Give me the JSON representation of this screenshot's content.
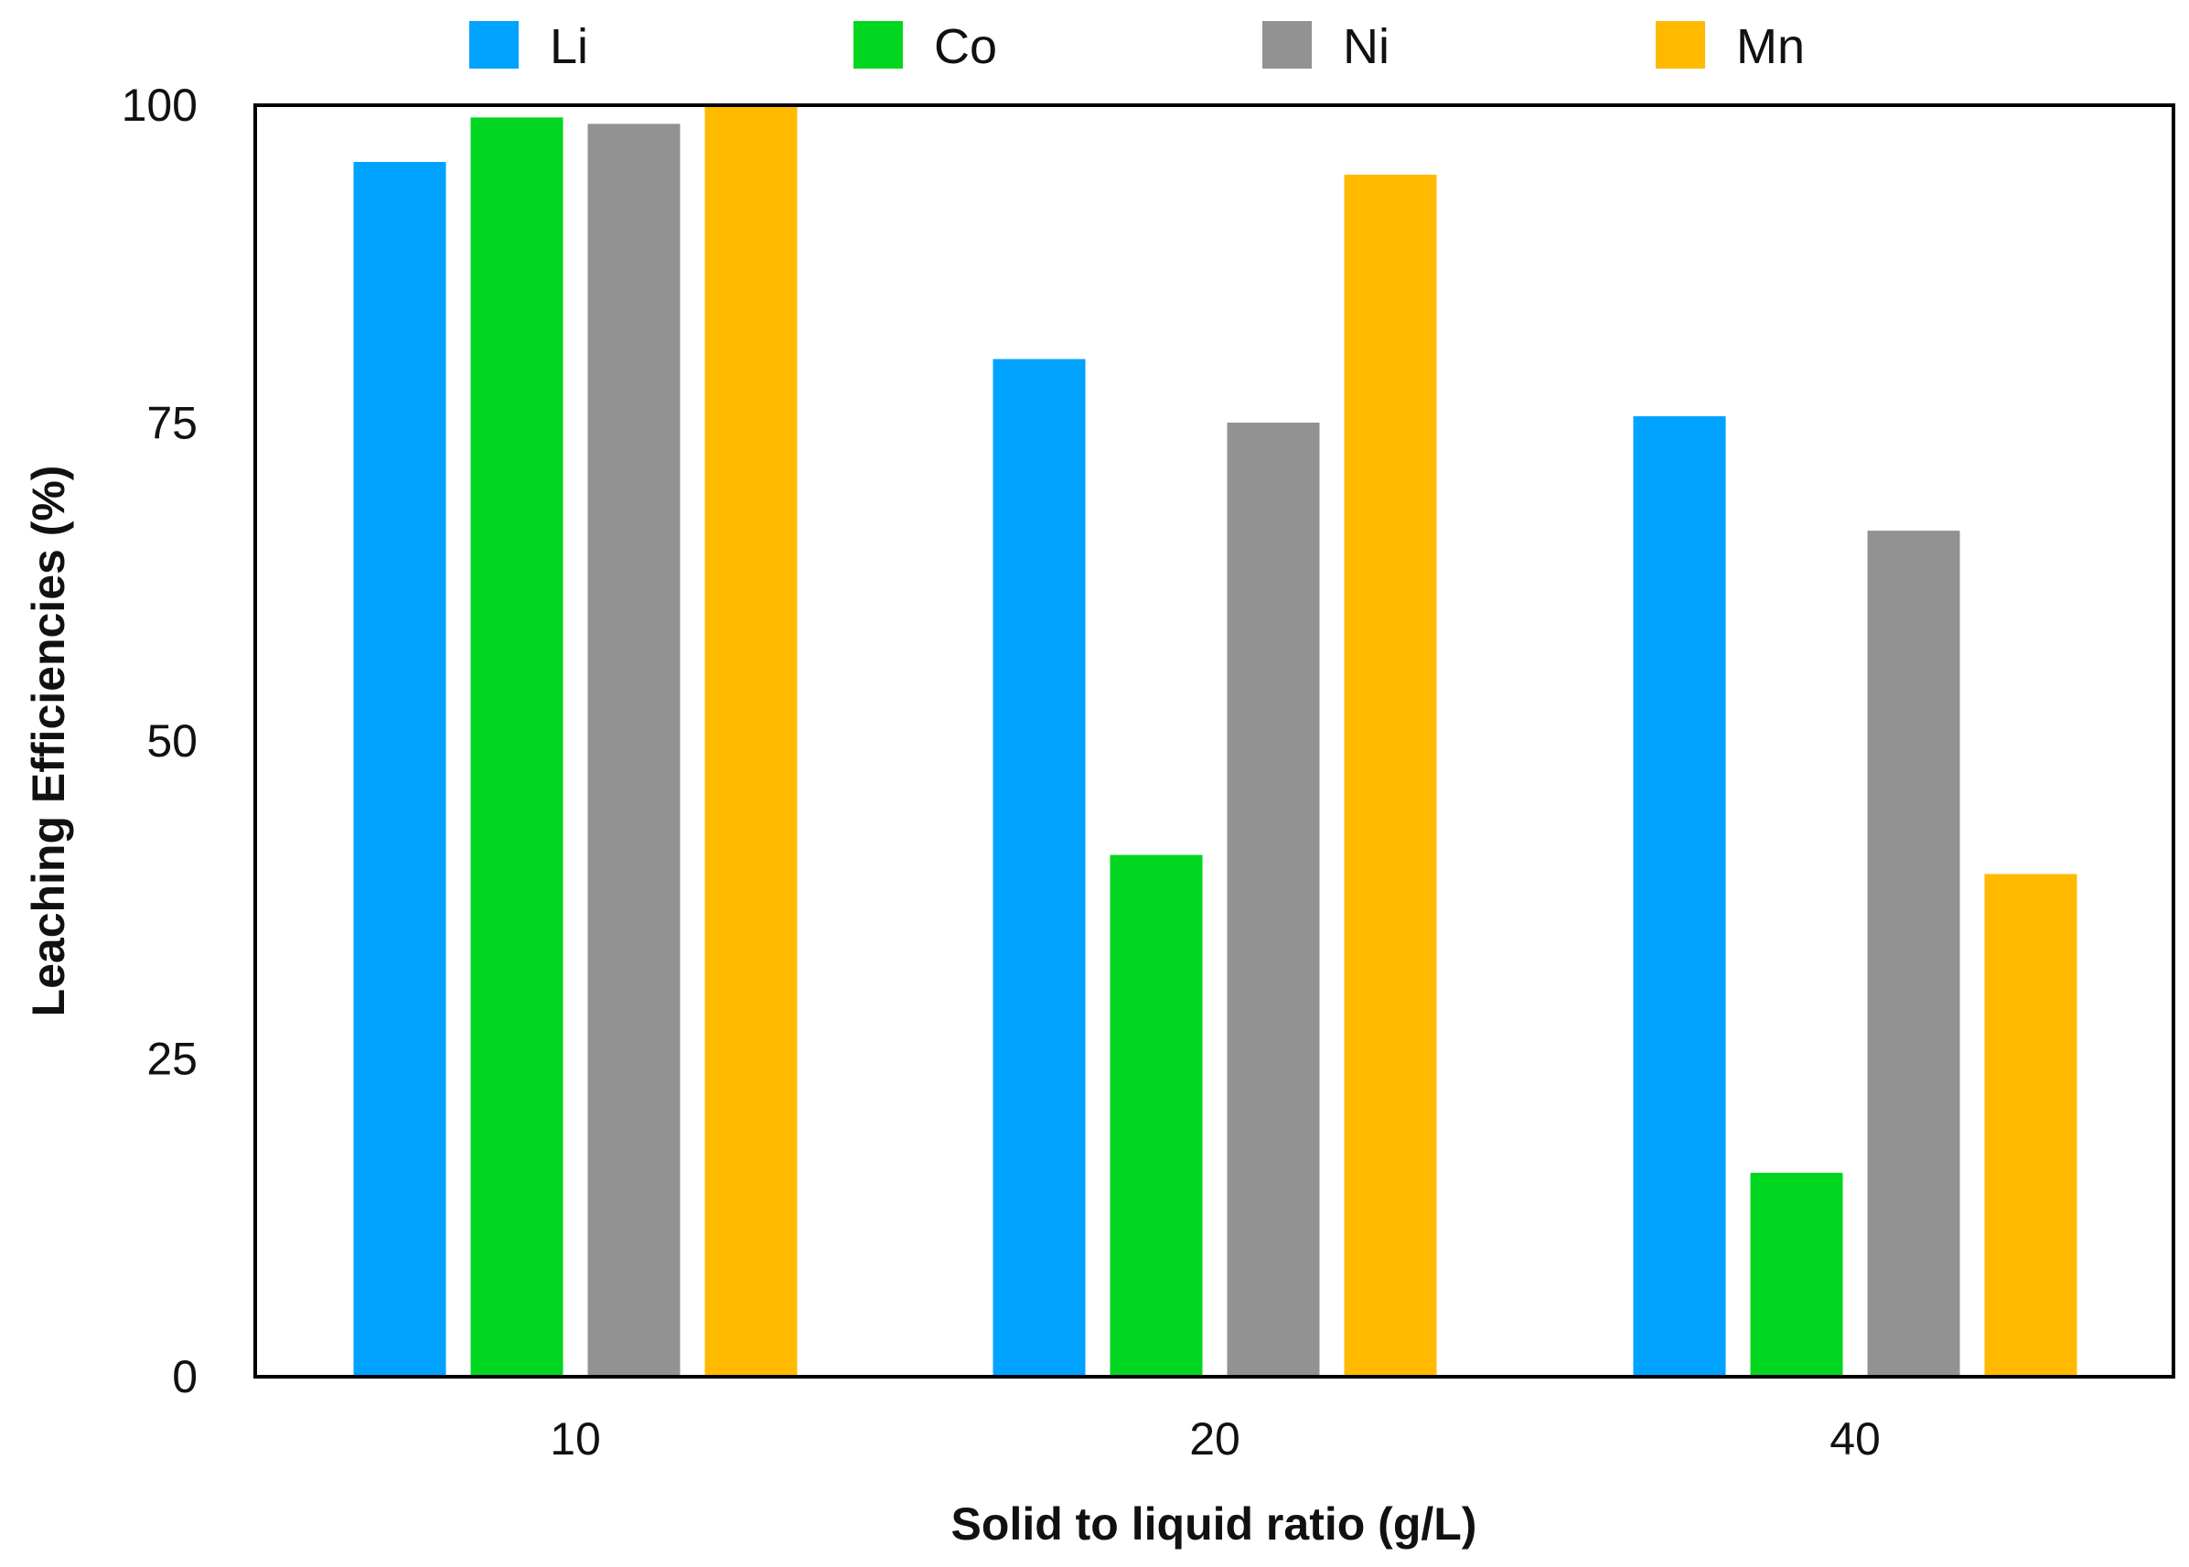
{
  "chart_data": {
    "type": "bar",
    "title": "",
    "xlabel": "Solid to liquid ratio (g/L)",
    "ylabel": "Leaching Efficiencies (%)",
    "categories": [
      "10",
      "20",
      "40"
    ],
    "ylim": [
      0,
      100
    ],
    "yticks": [
      "0",
      "25",
      "50",
      "75",
      "100"
    ],
    "grid": false,
    "legend_position": "top",
    "series": [
      {
        "name": "Li",
        "color": "#00A2FF",
        "values": [
          95.5,
          80,
          75.5
        ]
      },
      {
        "name": "Co",
        "color": "#00D61F",
        "values": [
          99,
          41,
          16
        ]
      },
      {
        "name": "Ni",
        "color": "#929292",
        "values": [
          98.5,
          75,
          66.5
        ]
      },
      {
        "name": "Mn",
        "color": "#FFBA00",
        "values": [
          100,
          94.5,
          39.5
        ]
      }
    ]
  }
}
